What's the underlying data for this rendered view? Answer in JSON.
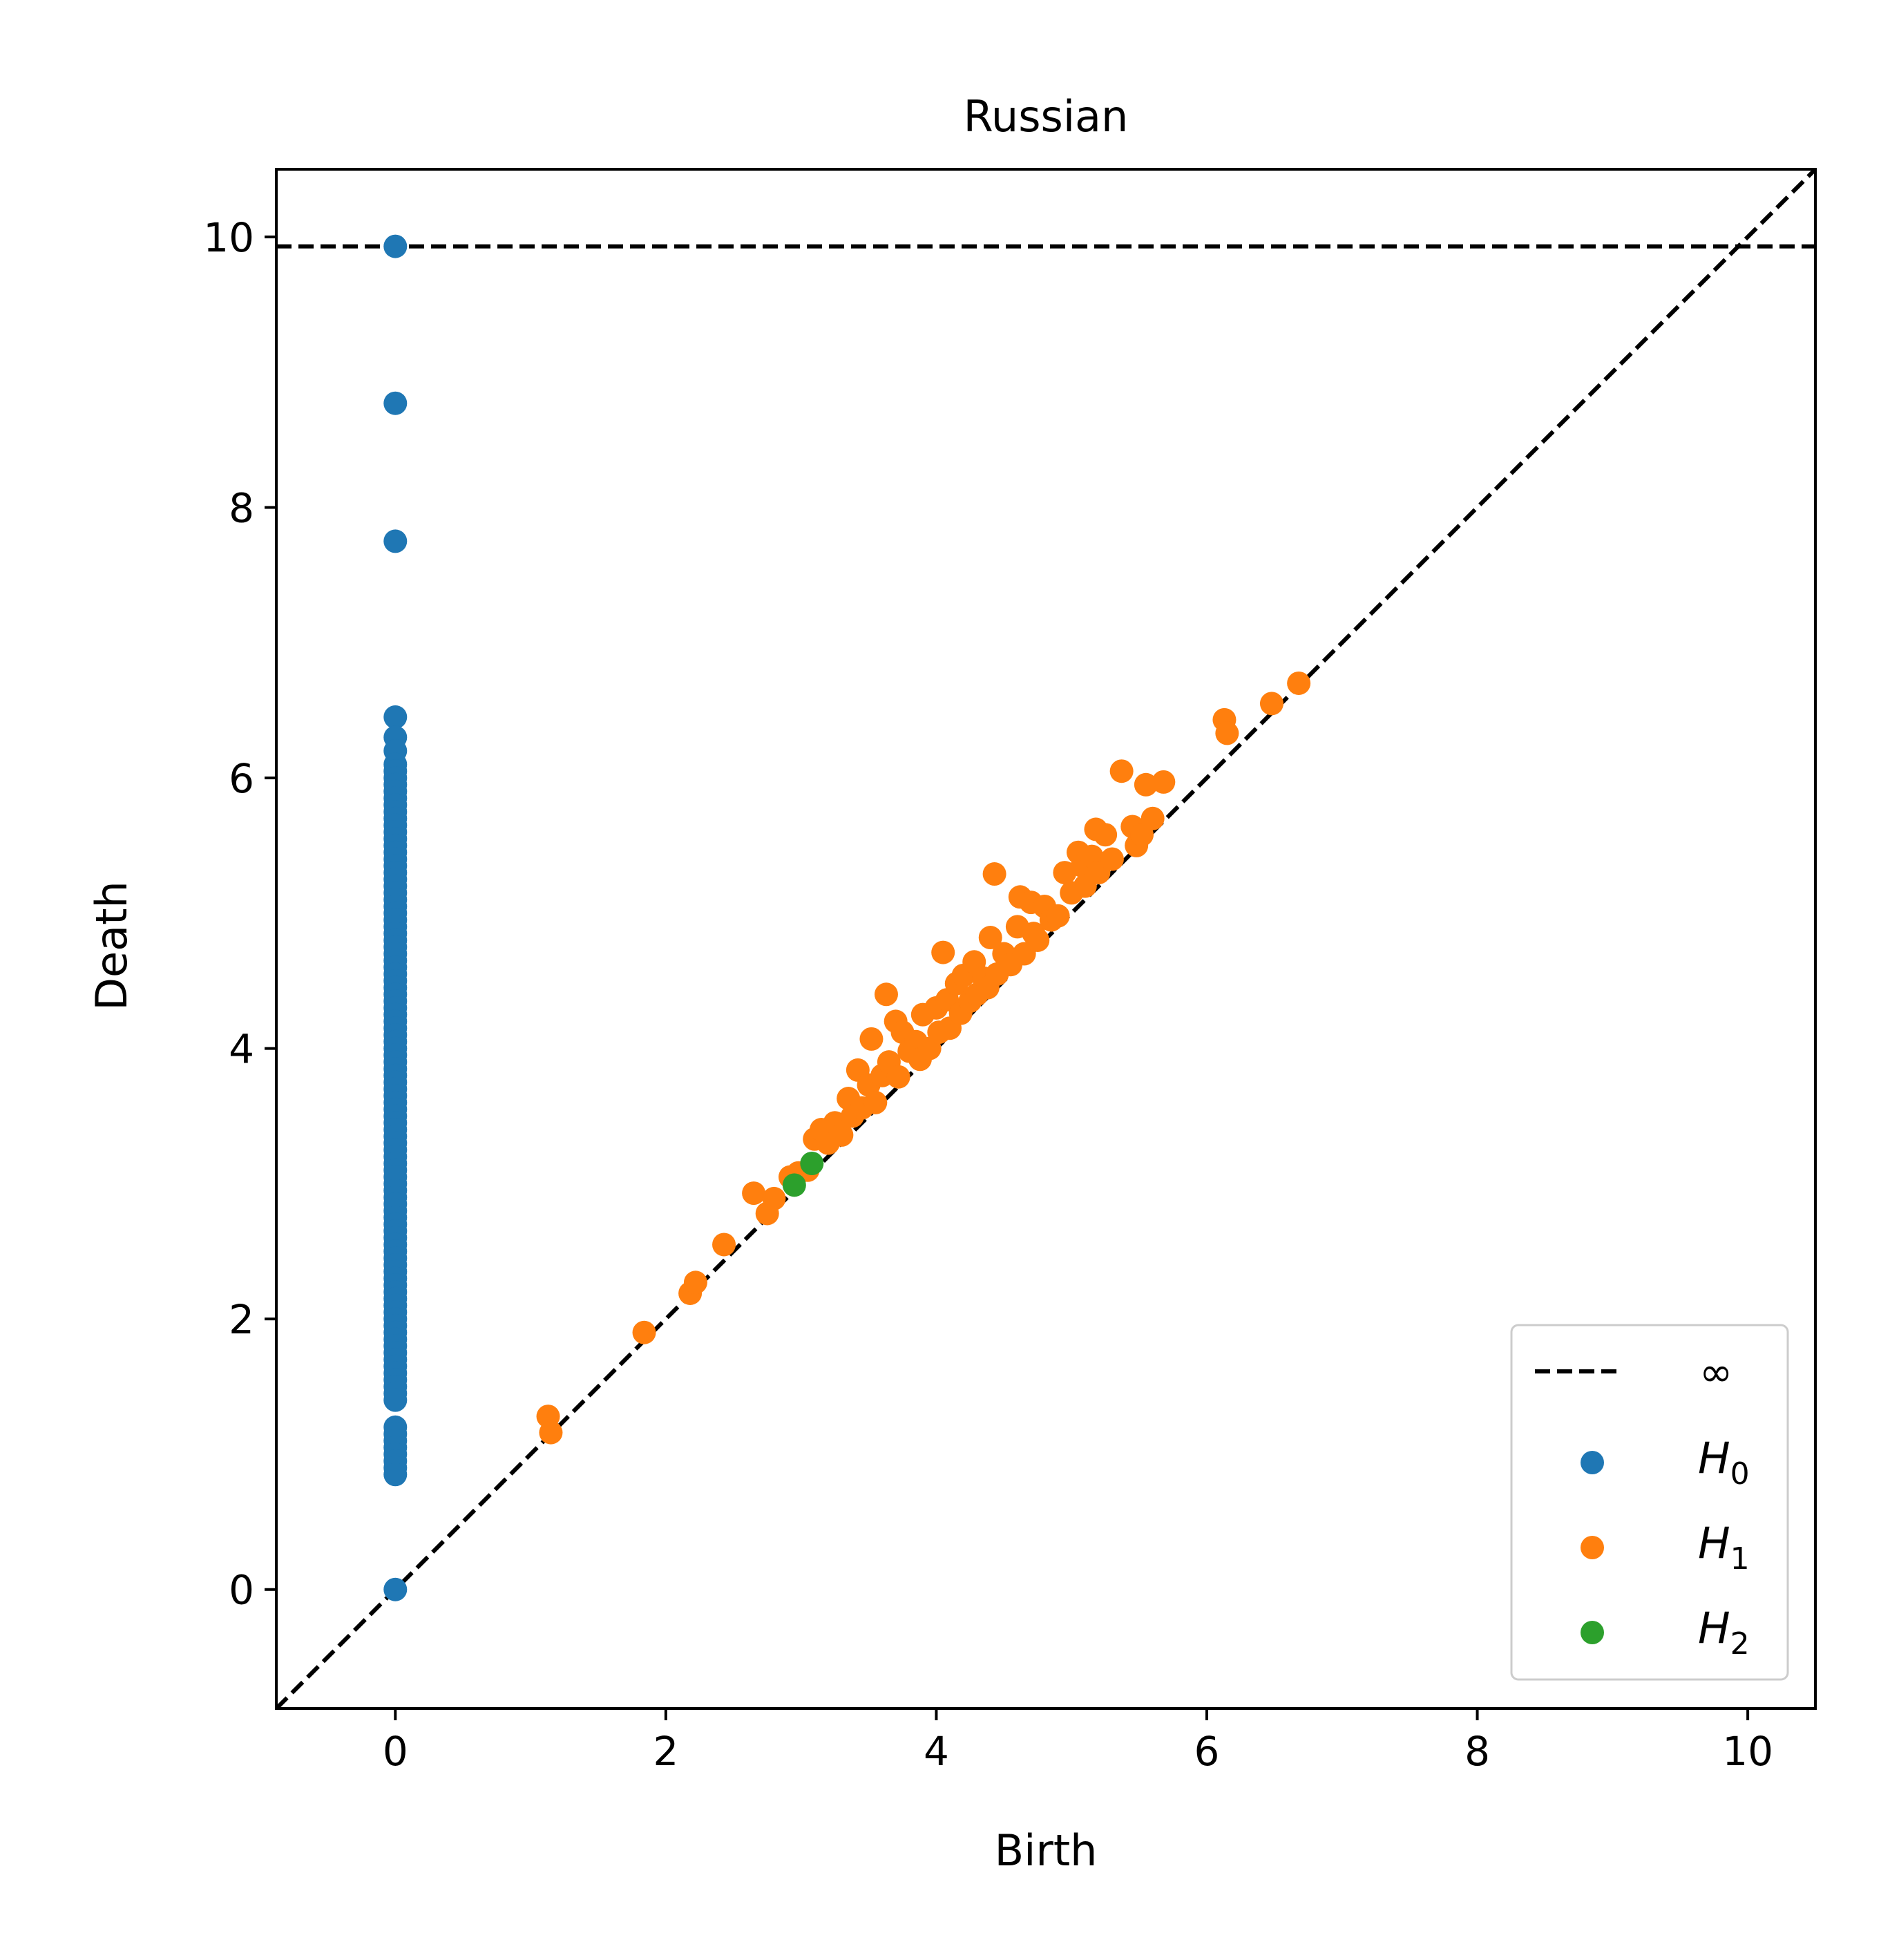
{
  "chart_data": {
    "type": "scatter",
    "title": "Russian",
    "xlabel": "Birth",
    "ylabel": "Death",
    "xlim": [
      -0.88,
      10.5
    ],
    "ylim": [
      -0.88,
      10.5
    ],
    "x_ticks": [
      0,
      2,
      4,
      6,
      8,
      10
    ],
    "y_ticks": [
      0,
      2,
      4,
      6,
      8,
      10
    ],
    "infinity_level": 9.93,
    "diagonal": true,
    "grid": false,
    "legend_position": "lower-right",
    "legend": {
      "infinity_label": "∞",
      "entries": [
        {
          "label": "H",
          "sub": "0"
        },
        {
          "label": "H",
          "sub": "1"
        },
        {
          "label": "H",
          "sub": "2"
        }
      ]
    },
    "series": [
      {
        "name": "H0",
        "color": "#1f77b4",
        "points": [
          [
            0,
            9.93
          ],
          [
            0,
            8.77
          ],
          [
            0,
            7.75
          ],
          [
            0,
            6.45
          ],
          [
            0,
            6.3
          ],
          [
            0,
            6.2
          ],
          [
            0,
            6.1
          ],
          [
            0,
            6.05
          ],
          [
            0,
            6.0
          ],
          [
            0,
            5.95
          ],
          [
            0,
            5.9
          ],
          [
            0,
            5.85
          ],
          [
            0,
            5.8
          ],
          [
            0,
            5.75
          ],
          [
            0,
            5.7
          ],
          [
            0,
            5.65
          ],
          [
            0,
            5.6
          ],
          [
            0,
            5.55
          ],
          [
            0,
            5.5
          ],
          [
            0,
            5.45
          ],
          [
            0,
            5.4
          ],
          [
            0,
            5.35
          ],
          [
            0,
            5.3
          ],
          [
            0,
            5.25
          ],
          [
            0,
            5.2
          ],
          [
            0,
            5.15
          ],
          [
            0,
            5.1
          ],
          [
            0,
            5.05
          ],
          [
            0,
            5.0
          ],
          [
            0,
            4.95
          ],
          [
            0,
            4.9
          ],
          [
            0,
            4.85
          ],
          [
            0,
            4.8
          ],
          [
            0,
            4.75
          ],
          [
            0,
            4.7
          ],
          [
            0,
            4.65
          ],
          [
            0,
            4.6
          ],
          [
            0,
            4.55
          ],
          [
            0,
            4.5
          ],
          [
            0,
            4.45
          ],
          [
            0,
            4.4
          ],
          [
            0,
            4.35
          ],
          [
            0,
            4.3
          ],
          [
            0,
            4.25
          ],
          [
            0,
            4.2
          ],
          [
            0,
            4.15
          ],
          [
            0,
            4.1
          ],
          [
            0,
            4.05
          ],
          [
            0,
            4.0
          ],
          [
            0,
            3.95
          ],
          [
            0,
            3.9
          ],
          [
            0,
            3.85
          ],
          [
            0,
            3.8
          ],
          [
            0,
            3.75
          ],
          [
            0,
            3.7
          ],
          [
            0,
            3.65
          ],
          [
            0,
            3.6
          ],
          [
            0,
            3.55
          ],
          [
            0,
            3.5
          ],
          [
            0,
            3.45
          ],
          [
            0,
            3.4
          ],
          [
            0,
            3.35
          ],
          [
            0,
            3.3
          ],
          [
            0,
            3.25
          ],
          [
            0,
            3.2
          ],
          [
            0,
            3.15
          ],
          [
            0,
            3.1
          ],
          [
            0,
            3.05
          ],
          [
            0,
            3.0
          ],
          [
            0,
            2.95
          ],
          [
            0,
            2.9
          ],
          [
            0,
            2.85
          ],
          [
            0,
            2.8
          ],
          [
            0,
            2.75
          ],
          [
            0,
            2.7
          ],
          [
            0,
            2.65
          ],
          [
            0,
            2.6
          ],
          [
            0,
            2.55
          ],
          [
            0,
            2.5
          ],
          [
            0,
            2.45
          ],
          [
            0,
            2.4
          ],
          [
            0,
            2.35
          ],
          [
            0,
            2.3
          ],
          [
            0,
            2.25
          ],
          [
            0,
            2.2
          ],
          [
            0,
            2.15
          ],
          [
            0,
            2.1
          ],
          [
            0,
            2.05
          ],
          [
            0,
            2.0
          ],
          [
            0,
            1.95
          ],
          [
            0,
            1.9
          ],
          [
            0,
            1.85
          ],
          [
            0,
            1.8
          ],
          [
            0,
            1.75
          ],
          [
            0,
            1.7
          ],
          [
            0,
            1.65
          ],
          [
            0,
            1.6
          ],
          [
            0,
            1.55
          ],
          [
            0,
            1.5
          ],
          [
            0,
            1.45
          ],
          [
            0,
            1.4
          ],
          [
            0,
            1.2
          ],
          [
            0,
            1.15
          ],
          [
            0,
            1.1
          ],
          [
            0,
            1.05
          ],
          [
            0,
            1.0
          ],
          [
            0,
            0.95
          ],
          [
            0,
            0.9
          ],
          [
            0,
            0.85
          ],
          [
            0,
            0.0
          ]
        ]
      },
      {
        "name": "H1",
        "color": "#ff7f0e",
        "points": [
          [
            1.13,
            1.28
          ],
          [
            1.15,
            1.16
          ],
          [
            1.84,
            1.9
          ],
          [
            2.18,
            2.19
          ],
          [
            2.22,
            2.27
          ],
          [
            2.43,
            2.55
          ],
          [
            2.65,
            2.93
          ],
          [
            2.75,
            2.78
          ],
          [
            2.8,
            2.89
          ],
          [
            2.92,
            3.05
          ],
          [
            2.98,
            3.08
          ],
          [
            3.05,
            3.1
          ],
          [
            3.1,
            3.33
          ],
          [
            3.15,
            3.4
          ],
          [
            3.2,
            3.3
          ],
          [
            3.25,
            3.45
          ],
          [
            3.3,
            3.36
          ],
          [
            3.35,
            3.63
          ],
          [
            3.38,
            3.5
          ],
          [
            3.42,
            3.84
          ],
          [
            3.45,
            3.56
          ],
          [
            3.5,
            3.73
          ],
          [
            3.52,
            4.07
          ],
          [
            3.55,
            3.6
          ],
          [
            3.6,
            3.8
          ],
          [
            3.63,
            4.4
          ],
          [
            3.65,
            3.9
          ],
          [
            3.7,
            4.2
          ],
          [
            3.72,
            3.79
          ],
          [
            3.75,
            4.12
          ],
          [
            3.8,
            3.98
          ],
          [
            3.85,
            4.05
          ],
          [
            3.88,
            3.92
          ],
          [
            3.9,
            4.25
          ],
          [
            3.95,
            4.0
          ],
          [
            4.0,
            4.3
          ],
          [
            4.02,
            4.12
          ],
          [
            4.05,
            4.71
          ],
          [
            4.08,
            4.36
          ],
          [
            4.1,
            4.15
          ],
          [
            4.15,
            4.48
          ],
          [
            4.18,
            4.26
          ],
          [
            4.2,
            4.54
          ],
          [
            4.25,
            4.35
          ],
          [
            4.28,
            4.64
          ],
          [
            4.3,
            4.4
          ],
          [
            4.35,
            4.52
          ],
          [
            4.38,
            4.45
          ],
          [
            4.4,
            4.82
          ],
          [
            4.43,
            5.29
          ],
          [
            4.45,
            4.55
          ],
          [
            4.5,
            4.7
          ],
          [
            4.55,
            4.62
          ],
          [
            4.6,
            4.9
          ],
          [
            4.62,
            5.12
          ],
          [
            4.65,
            4.7
          ],
          [
            4.7,
            5.08
          ],
          [
            4.72,
            4.85
          ],
          [
            4.75,
            4.8
          ],
          [
            4.8,
            5.05
          ],
          [
            4.85,
            4.95
          ],
          [
            4.9,
            4.98
          ],
          [
            4.95,
            5.3
          ],
          [
            5.0,
            5.15
          ],
          [
            5.05,
            5.45
          ],
          [
            5.08,
            5.35
          ],
          [
            5.1,
            5.2
          ],
          [
            5.15,
            5.42
          ],
          [
            5.18,
            5.62
          ],
          [
            5.2,
            5.3
          ],
          [
            5.25,
            5.58
          ],
          [
            5.3,
            5.4
          ],
          [
            5.37,
            6.05
          ],
          [
            5.45,
            5.64
          ],
          [
            5.48,
            5.5
          ],
          [
            5.52,
            5.58
          ],
          [
            5.55,
            5.95
          ],
          [
            5.6,
            5.7
          ],
          [
            5.68,
            5.97
          ],
          [
            6.13,
            6.43
          ],
          [
            6.15,
            6.33
          ],
          [
            6.48,
            6.55
          ],
          [
            6.68,
            6.7
          ]
        ]
      },
      {
        "name": "H2",
        "color": "#2ca02c",
        "points": [
          [
            2.95,
            2.99
          ],
          [
            3.08,
            3.15
          ]
        ]
      }
    ]
  }
}
